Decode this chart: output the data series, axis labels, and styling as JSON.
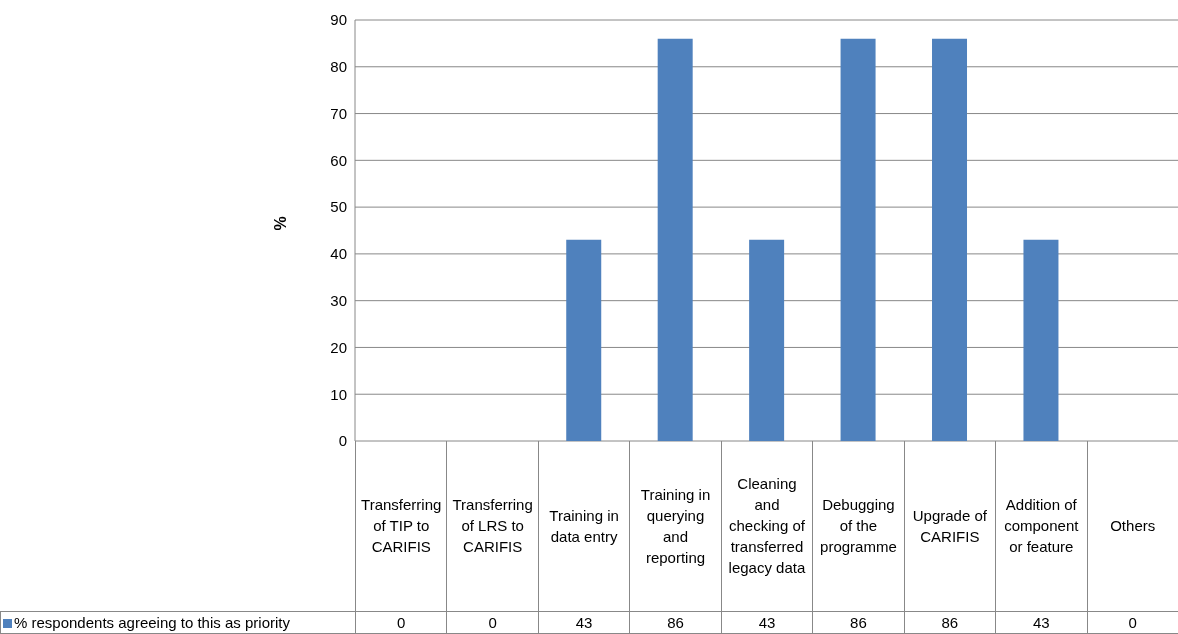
{
  "chart_data": {
    "type": "bar",
    "ylabel": "%",
    "categories": [
      "Transferring of TIP to CARIFIS",
      "Transferring of LRS to CARIFIS",
      "Training in data entry",
      "Training in querying and reporting",
      "Cleaning and checking of transferred legacy data",
      "Debugging of the programme",
      "Upgrade of CARIFIS",
      "Addition of component or feature",
      "Others"
    ],
    "series": [
      {
        "name": "% respondents agreeing to this as priority",
        "color": "#4f81bd",
        "values": [
          0,
          0,
          43,
          86,
          43,
          86,
          86,
          43,
          0
        ]
      }
    ],
    "ylim": [
      0,
      90
    ],
    "yticks": [
      0,
      10,
      20,
      30,
      40,
      50,
      60,
      70,
      80,
      90
    ],
    "grid": "y",
    "legend": "bottom",
    "data_labels": true
  }
}
